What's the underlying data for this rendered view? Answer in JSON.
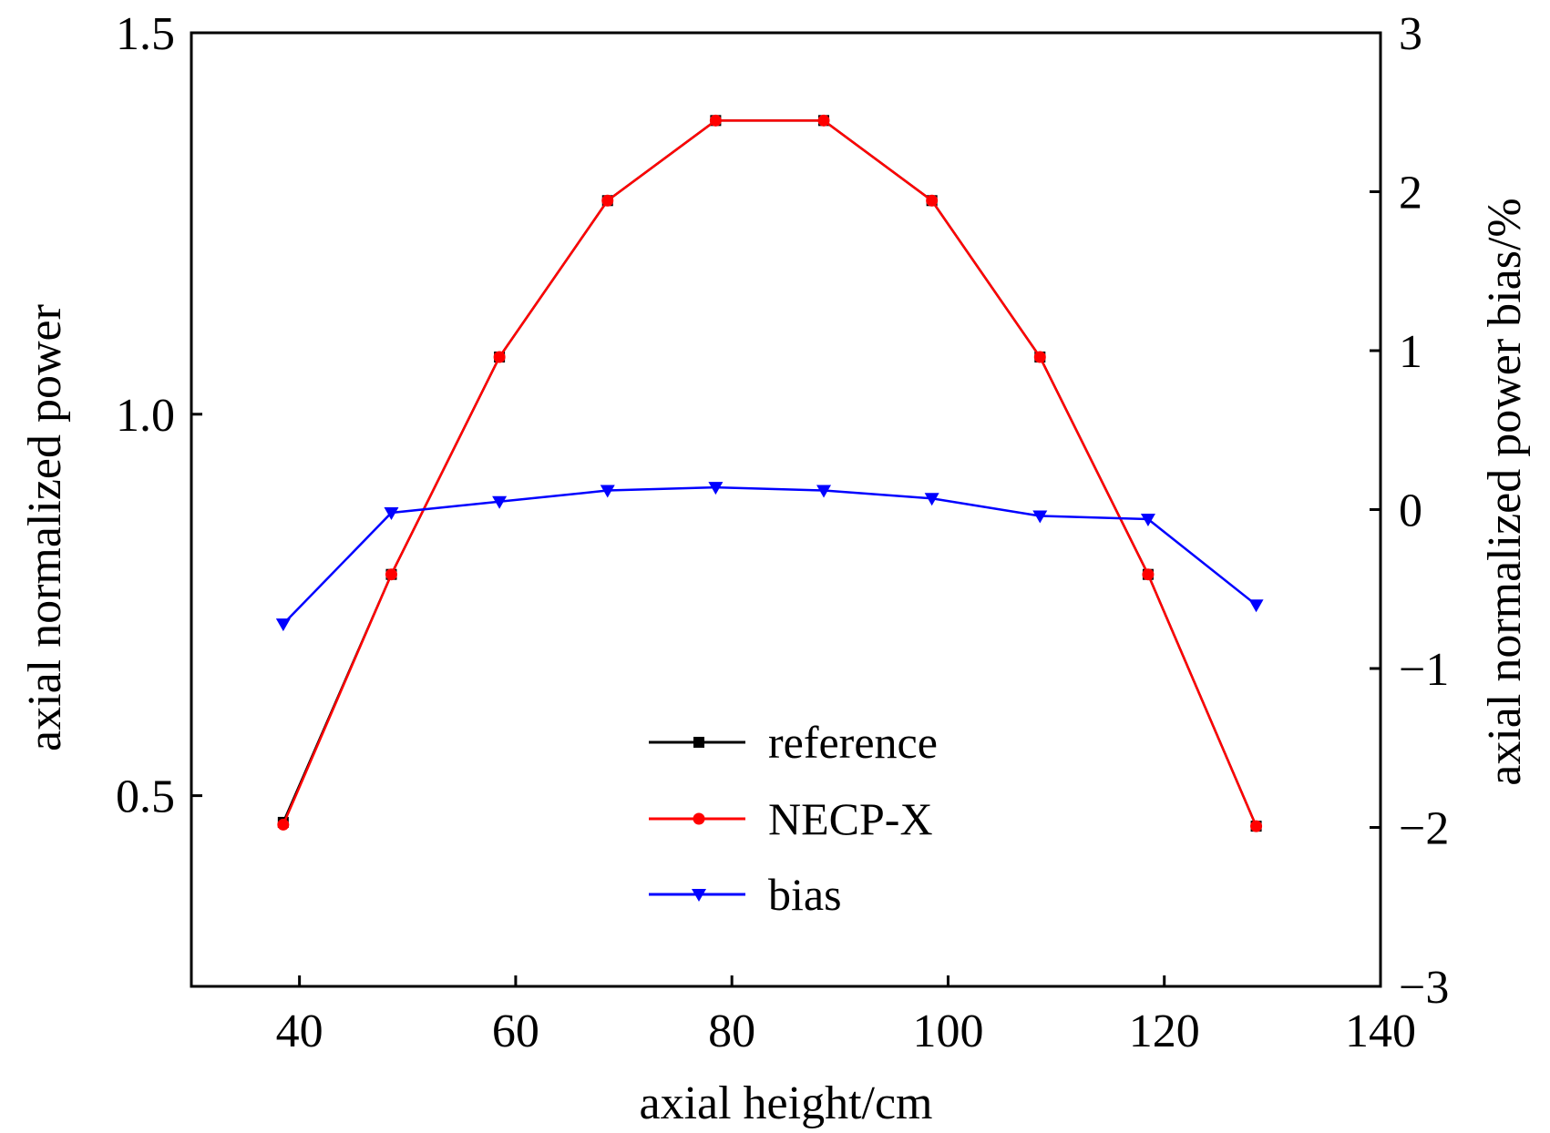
{
  "chart_data": {
    "type": "line",
    "xlabel": "axial height/cm",
    "ylabel": "axial normalized power",
    "y2label": "axial normalized power bias/%",
    "xlim": [
      30,
      140
    ],
    "ylim": [
      0.25,
      1.5
    ],
    "y2lim": [
      -3,
      3
    ],
    "xticks": [
      "40",
      "60",
      "80",
      "100",
      "120",
      "140"
    ],
    "xtick_values": [
      40,
      60,
      80,
      100,
      120,
      140
    ],
    "yticks": [
      "0.5",
      "1.0",
      "1.5"
    ],
    "ytick_values": [
      0.5,
      1.0,
      1.5
    ],
    "y2ticks": [
      "3",
      "2",
      "1",
      "0",
      "−1",
      "−2",
      "−3"
    ],
    "y2tick_values": [
      3,
      2,
      1,
      0,
      -1,
      -2,
      -3
    ],
    "grid": false,
    "legend_position": "bottom-center",
    "x": [
      38.5,
      48.5,
      58.5,
      68.5,
      78.5,
      88.5,
      98.5,
      108.5,
      118.5,
      128.5
    ],
    "series": [
      {
        "name": "reference",
        "axis": "left",
        "color": "#000000",
        "marker": "square",
        "values": [
          0.465,
          0.79,
          1.075,
          1.28,
          1.385,
          1.385,
          1.28,
          1.075,
          0.79,
          0.46
        ]
      },
      {
        "name": "NECP-X",
        "axis": "left",
        "color": "#ff0000",
        "marker": "circle",
        "values": [
          0.462,
          0.79,
          1.075,
          1.28,
          1.385,
          1.385,
          1.28,
          1.075,
          0.79,
          0.46
        ]
      },
      {
        "name": "bias",
        "axis": "right",
        "color": "#0000ff",
        "marker": "triangle-down",
        "values": [
          -0.72,
          -0.02,
          0.05,
          0.12,
          0.14,
          0.12,
          0.07,
          -0.04,
          -0.06,
          -0.6
        ]
      }
    ]
  }
}
